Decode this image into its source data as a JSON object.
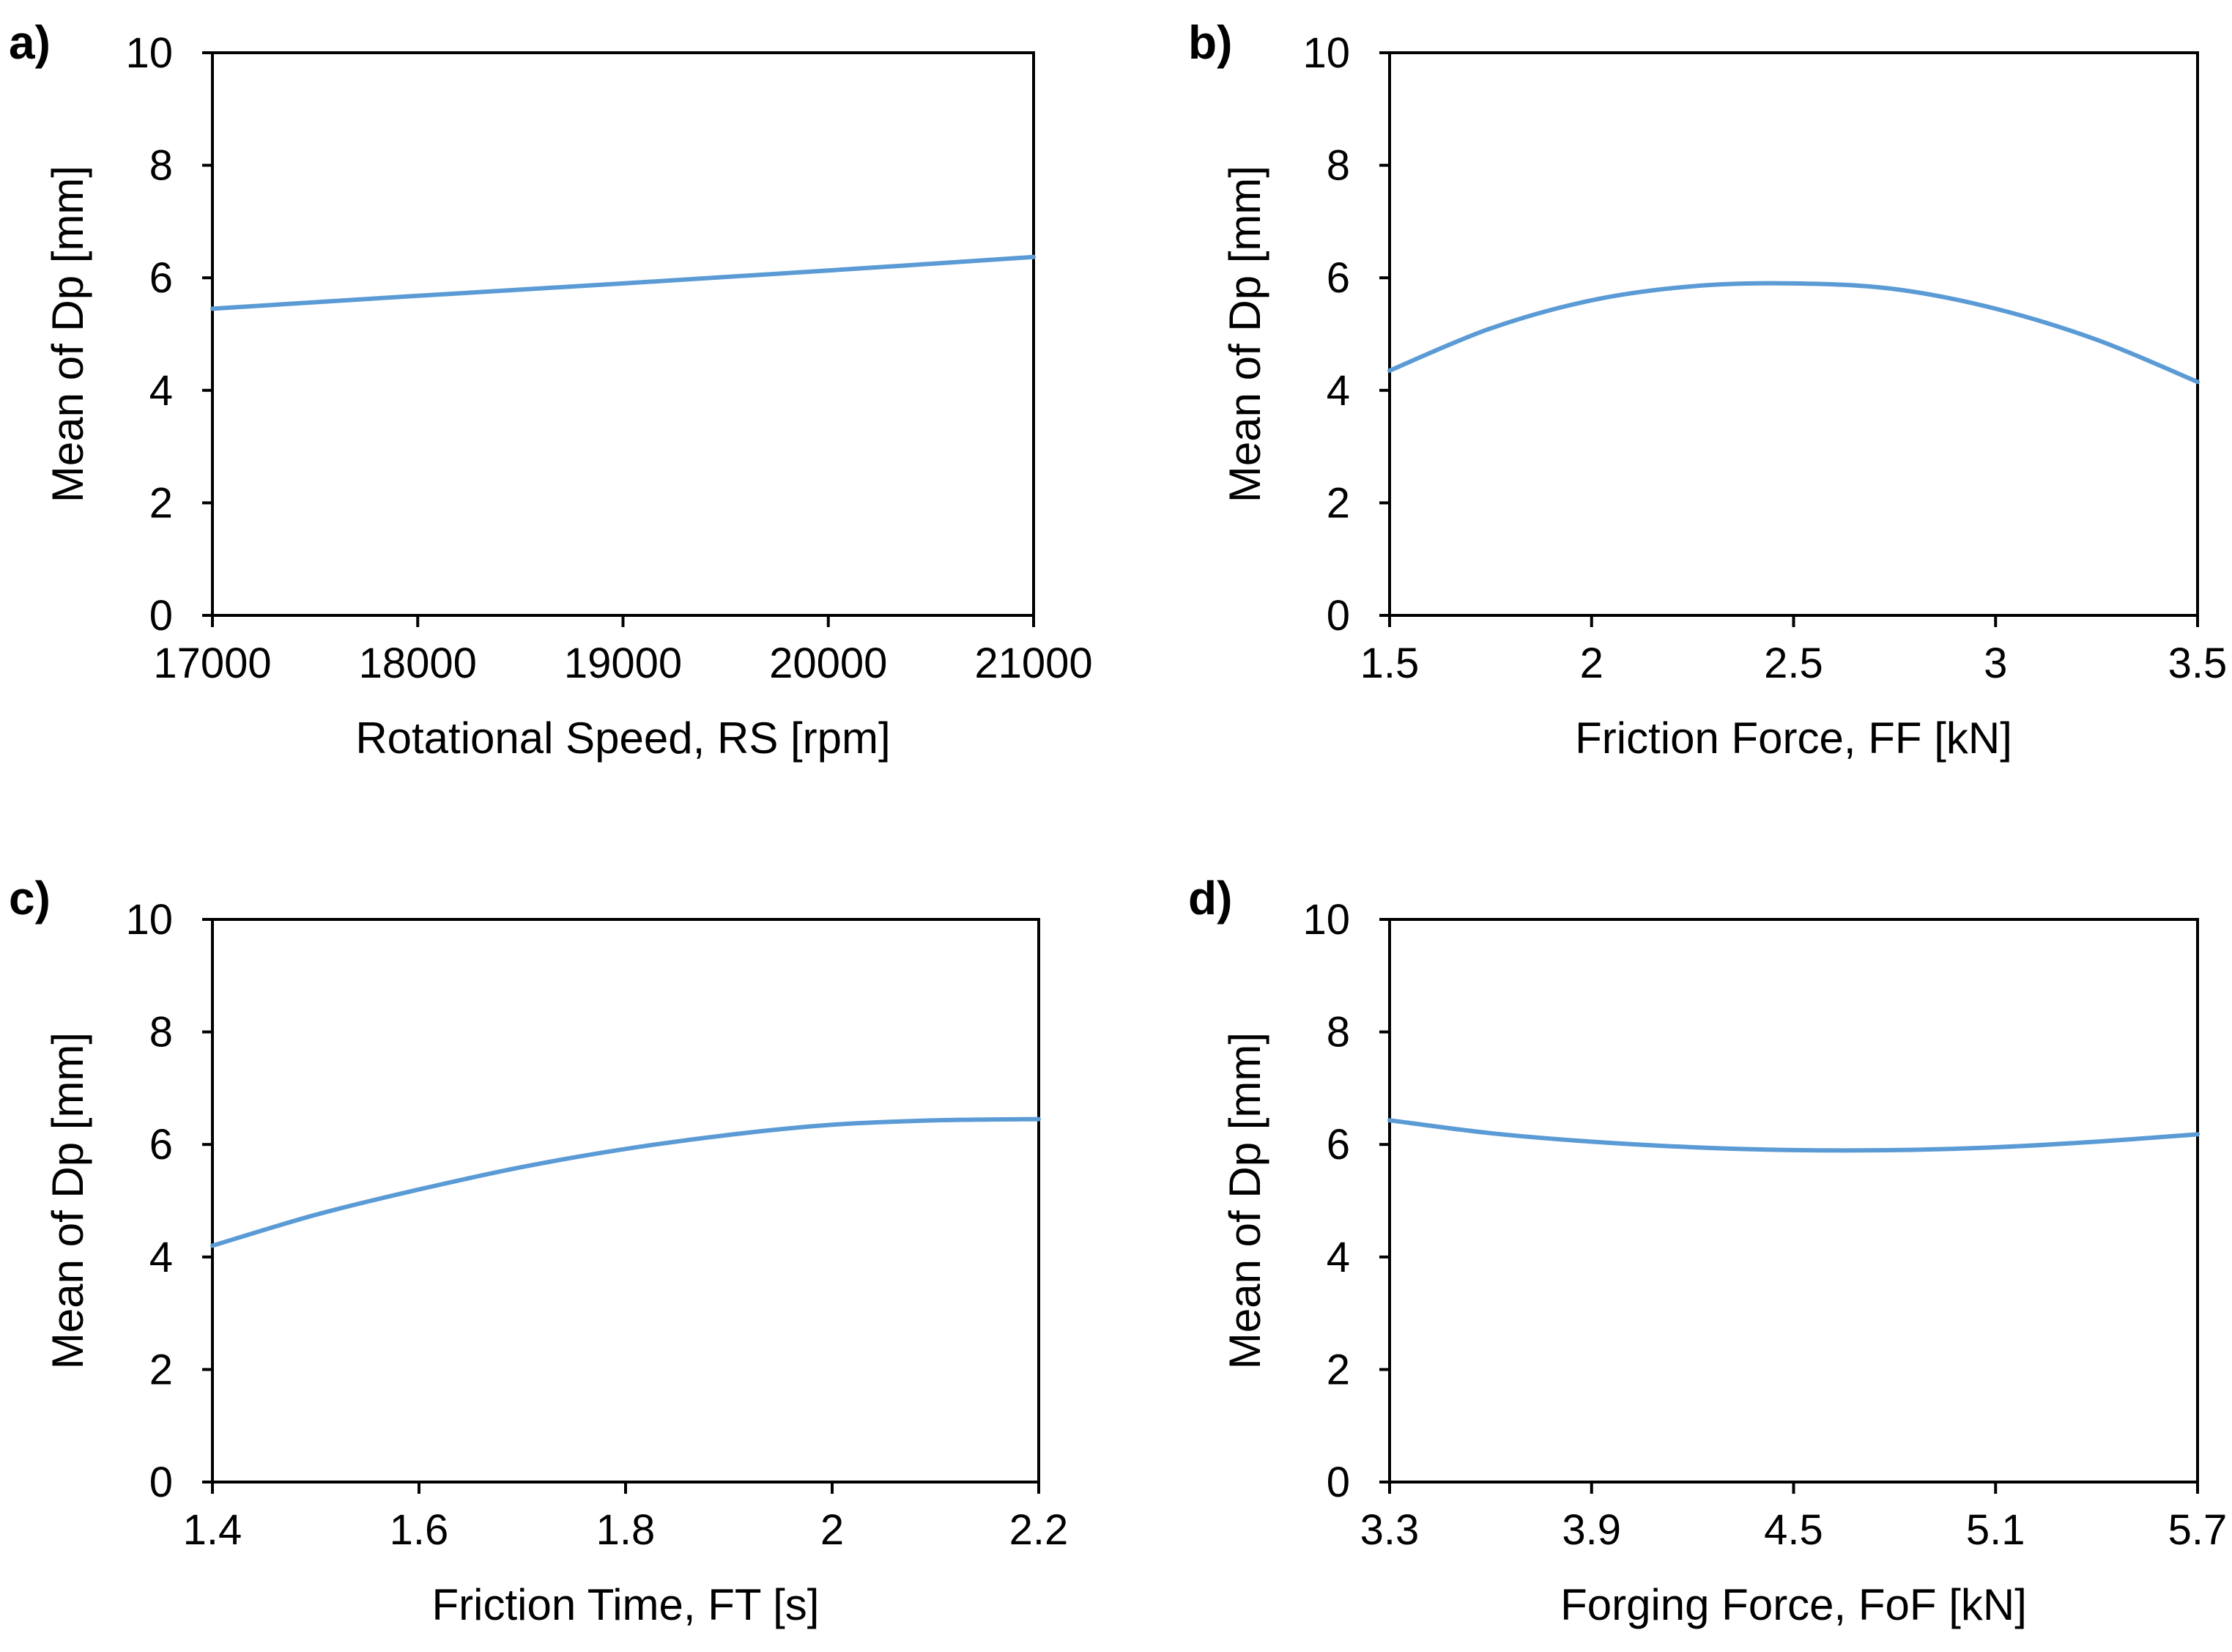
{
  "chart_data": [
    {
      "panel": "a)",
      "type": "line",
      "title": "",
      "xlabel": "Rotational Speed, RS [rpm]",
      "ylabel": "Mean of Dp [mm]",
      "xlim": [
        17000,
        21000
      ],
      "ylim": [
        0,
        10
      ],
      "x_ticks": [
        "17000",
        "18000",
        "19000",
        "20000",
        "21000"
      ],
      "y_ticks": [
        "0",
        "2",
        "4",
        "6",
        "8",
        "10"
      ],
      "series": [
        {
          "name": "Mean of Dp",
          "x": [
            17000,
            18000,
            19000,
            20000,
            21000
          ],
          "y": [
            5.45,
            5.68,
            5.9,
            6.13,
            6.37
          ]
        }
      ]
    },
    {
      "panel": "b)",
      "type": "line",
      "title": "",
      "xlabel": "Friction Force, FF [kN]",
      "ylabel": "Mean of Dp [mm]",
      "xlim": [
        1.5,
        3.5
      ],
      "ylim": [
        0,
        10
      ],
      "x_ticks": [
        "1.5",
        "2",
        "2.5",
        "3",
        "3.5"
      ],
      "y_ticks": [
        "0",
        "2",
        "4",
        "6",
        "8",
        "10"
      ],
      "series": [
        {
          "name": "Mean of Dp",
          "x": [
            1.5,
            1.75,
            2.0,
            2.25,
            2.5,
            2.75,
            3.0,
            3.25,
            3.5
          ],
          "y": [
            4.35,
            5.1,
            5.6,
            5.85,
            5.9,
            5.8,
            5.45,
            4.9,
            4.15
          ]
        }
      ]
    },
    {
      "panel": "c)",
      "type": "line",
      "title": "",
      "xlabel": "Friction Time, FT [s]",
      "ylabel": "Mean of Dp [mm]",
      "xlim": [
        1.4,
        2.2
      ],
      "ylim": [
        0,
        10
      ],
      "x_ticks": [
        "1.4",
        "1.6",
        "1.8",
        "2",
        "2.2"
      ],
      "y_ticks": [
        "0",
        "2",
        "4",
        "6",
        "8",
        "10"
      ],
      "series": [
        {
          "name": "Mean of Dp",
          "x": [
            1.4,
            1.5,
            1.6,
            1.7,
            1.8,
            1.9,
            2.0,
            2.1,
            2.2
          ],
          "y": [
            4.2,
            4.75,
            5.2,
            5.6,
            5.92,
            6.17,
            6.35,
            6.43,
            6.45
          ]
        }
      ]
    },
    {
      "panel": "d)",
      "type": "line",
      "title": "",
      "xlabel": "Forging Force, FoF [kN]",
      "ylabel": "Mean of Dp [mm]",
      "xlim": [
        3.3,
        5.7
      ],
      "ylim": [
        0,
        10
      ],
      "x_ticks": [
        "3.3",
        "3.9",
        "4.5",
        "5.1",
        "5.7"
      ],
      "y_ticks": [
        "0",
        "2",
        "4",
        "6",
        "8",
        "10"
      ],
      "series": [
        {
          "name": "Mean of Dp",
          "x": [
            3.3,
            3.6,
            3.9,
            4.2,
            4.5,
            4.8,
            5.1,
            5.4,
            5.7
          ],
          "y": [
            6.43,
            6.2,
            6.05,
            5.95,
            5.9,
            5.9,
            5.95,
            6.05,
            6.18
          ]
        }
      ]
    }
  ],
  "style": {
    "line_color": "#5B9BD5",
    "axis_color": "#000000"
  }
}
